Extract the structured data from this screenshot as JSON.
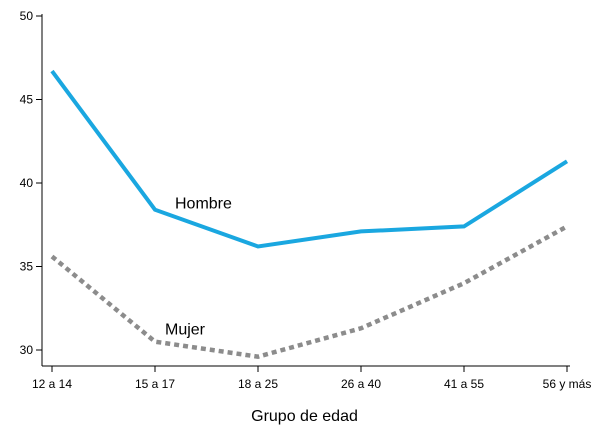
{
  "chart_data": {
    "type": "line",
    "categories": [
      "12 a 14",
      "15 a 17",
      "18 a 25",
      "26 a 40",
      "41 a 55",
      "56 y más"
    ],
    "series": [
      {
        "name": "Hombre",
        "values": [
          46.7,
          38.4,
          36.2,
          37.1,
          37.4,
          41.3
        ],
        "color": "#1aa7e0",
        "style": "solid"
      },
      {
        "name": "Mujer",
        "values": [
          35.6,
          30.5,
          29.6,
          31.3,
          34.0,
          37.4
        ],
        "color": "#8c8c8c",
        "style": "dotted"
      }
    ],
    "xlabel": "Grupo de edad",
    "ylabel": "",
    "ylim": [
      30,
      50
    ],
    "yticks": [
      30,
      35,
      40,
      45,
      50
    ],
    "grid": false,
    "legend": "inline labels"
  }
}
